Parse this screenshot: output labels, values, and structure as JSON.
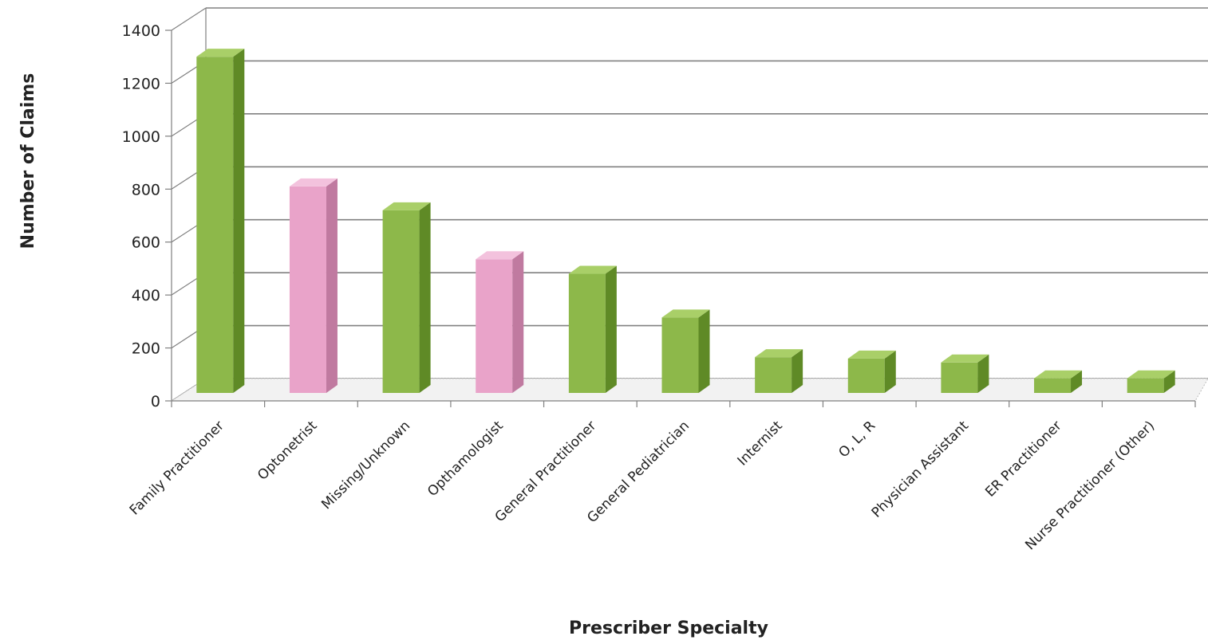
{
  "chart_data": {
    "type": "bar",
    "title": "",
    "xlabel": "Prescriber Specialty",
    "ylabel": "Number of Claims",
    "ylim": [
      0,
      1400
    ],
    "yticks": [
      0,
      200,
      400,
      600,
      800,
      1000,
      1200,
      1400
    ],
    "grid": true,
    "legend": "none",
    "categories": [
      "Family Practitioner",
      "Optonetrist",
      "Missing/Unknown",
      "Opthamologist",
      "General Practitioner",
      "General Pediatrician",
      "Internist",
      "O, L, R",
      "Physician Assistant",
      "ER Practitioner",
      "Nurse Practitioner (Other)"
    ],
    "values": [
      1270,
      780,
      690,
      505,
      450,
      285,
      135,
      130,
      115,
      55,
      55
    ],
    "bar_colors": [
      "green",
      "pink",
      "green",
      "pink",
      "green",
      "green",
      "green",
      "green",
      "green",
      "green",
      "green"
    ],
    "colors": {
      "green": {
        "front": "#8db84a",
        "side": "#5f8a26",
        "top": "#a9cf68"
      },
      "pink": {
        "front": "#e9a3c9",
        "side": "#c07aa0",
        "top": "#f3c2dd"
      },
      "grid": "#808080",
      "floor": "#bdbdbd"
    }
  }
}
